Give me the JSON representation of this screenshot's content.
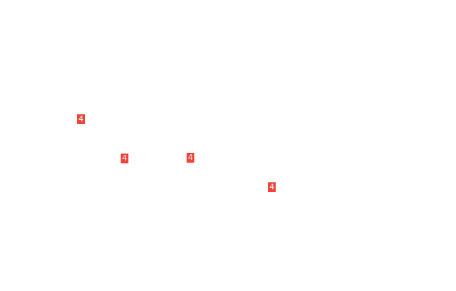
{
  "badges": [
    {
      "label": "4"
    },
    {
      "label": "4"
    },
    {
      "label": "4"
    },
    {
      "label": "4"
    }
  ],
  "colors": {
    "badge": "#f0443a",
    "background": "#ffffff"
  }
}
